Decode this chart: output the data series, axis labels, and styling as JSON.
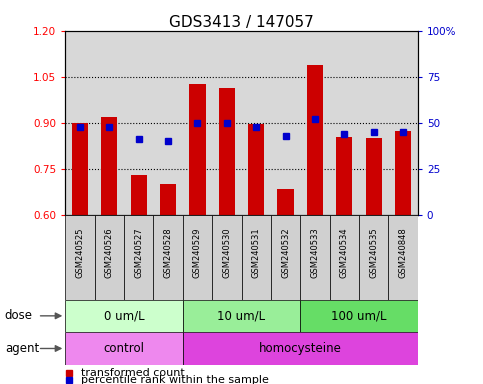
{
  "title": "GDS3413 / 147057",
  "samples": [
    "GSM240525",
    "GSM240526",
    "GSM240527",
    "GSM240528",
    "GSM240529",
    "GSM240530",
    "GSM240531",
    "GSM240532",
    "GSM240533",
    "GSM240534",
    "GSM240535",
    "GSM240848"
  ],
  "transformed_count": [
    0.9,
    0.92,
    0.73,
    0.7,
    1.025,
    1.015,
    0.895,
    0.685,
    1.09,
    0.855,
    0.85,
    0.875
  ],
  "percentile_rank": [
    48,
    48,
    41,
    40,
    50,
    50,
    48,
    43,
    52,
    44,
    45,
    45
  ],
  "ylim_left": [
    0.6,
    1.2
  ],
  "ylim_right": [
    0,
    100
  ],
  "yticks_left": [
    0.6,
    0.75,
    0.9,
    1.05,
    1.2
  ],
  "yticks_right": [
    0,
    25,
    50,
    75,
    100
  ],
  "ytick_labels_right": [
    "0",
    "25",
    "50",
    "75",
    "100%"
  ],
  "hlines": [
    0.75,
    0.9,
    1.05
  ],
  "dose_groups": [
    {
      "label": "0 um/L",
      "start": 0,
      "end": 4
    },
    {
      "label": "10 um/L",
      "start": 4,
      "end": 8
    },
    {
      "label": "100 um/L",
      "start": 8,
      "end": 12
    }
  ],
  "dose_colors": [
    "#ccffcc",
    "#99ee99",
    "#66dd66"
  ],
  "agent_groups": [
    {
      "label": "control",
      "start": 0,
      "end": 4
    },
    {
      "label": "homocysteine",
      "start": 4,
      "end": 12
    }
  ],
  "agent_colors": [
    "#ee88ee",
    "#dd44dd"
  ],
  "bar_color": "#cc0000",
  "dot_color": "#0000cc",
  "bar_bottom": 0.6,
  "dose_label": "dose",
  "agent_label": "agent",
  "legend_bar": "transformed count",
  "legend_dot": "percentile rank within the sample",
  "background_color": "#ffffff",
  "plot_bg_color": "#d8d8d8",
  "title_fontsize": 11,
  "tick_fontsize": 7.5,
  "label_fontsize": 8.5,
  "small_fontsize": 8
}
